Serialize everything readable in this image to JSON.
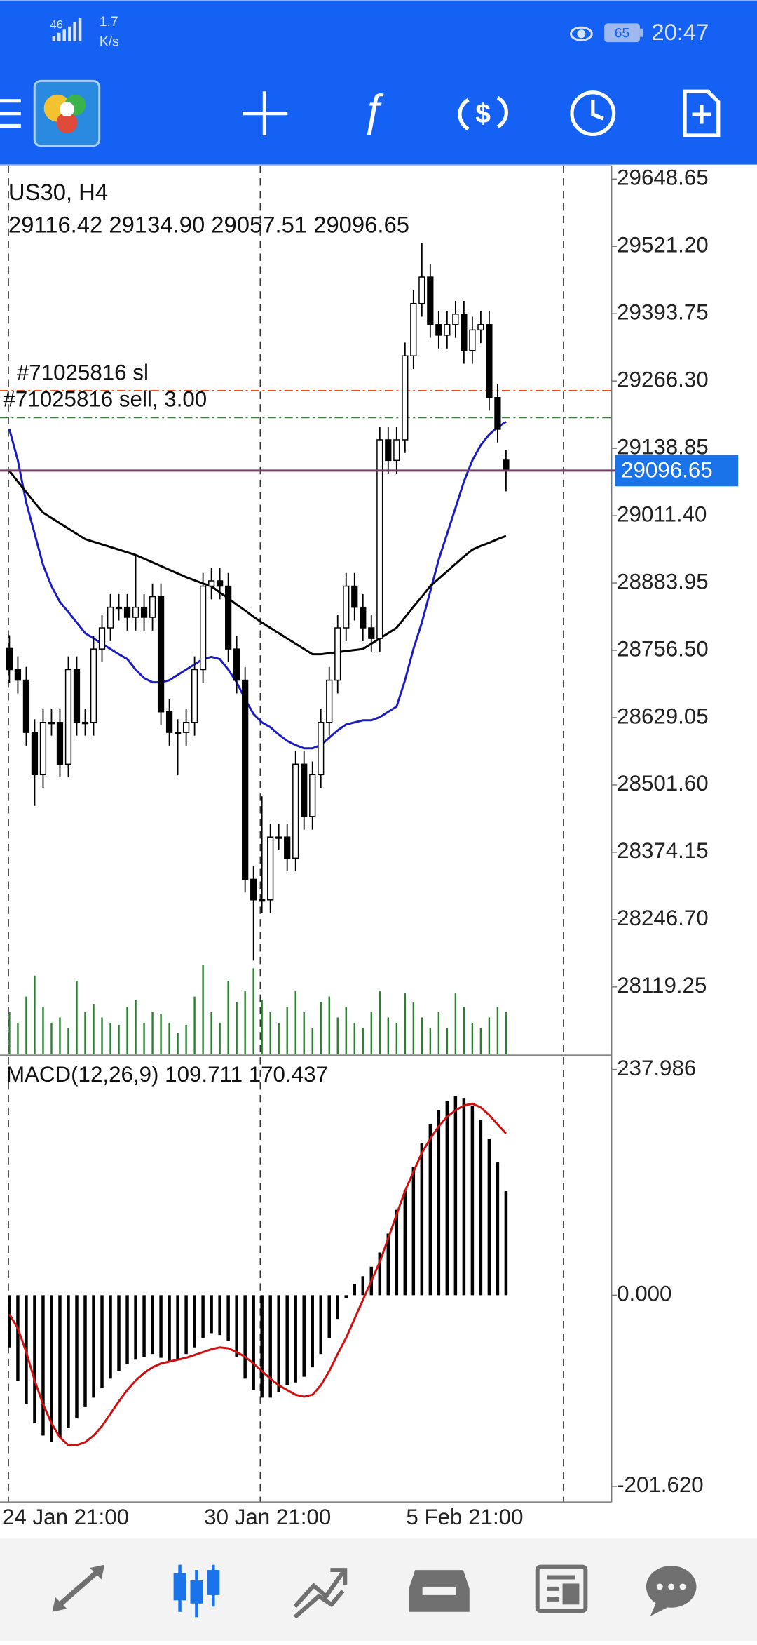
{
  "status_bar": {
    "network": "46",
    "speed": "1.7",
    "speed_unit": "K/s",
    "battery": "65",
    "time": "20:47"
  },
  "chart_data": [
    {
      "type": "candlestick",
      "title": "US30, H4",
      "subtitle": "29116.42 29134.90 29057.51 29096.65",
      "categories": [
        "24 Jan 21:00",
        null,
        null,
        null,
        null,
        null,
        null,
        null,
        null,
        null,
        null,
        null,
        null,
        null,
        null,
        null,
        null,
        null,
        null,
        null,
        null,
        null,
        null,
        null,
        "30 Jan 21:00",
        null,
        null,
        null,
        null,
        null,
        null,
        null,
        null,
        null,
        null,
        null,
        null,
        null,
        null,
        null,
        null,
        null,
        null,
        null,
        null,
        null,
        null,
        null,
        "5 Feb 21:00",
        null,
        null,
        null,
        null,
        null,
        null,
        null,
        null,
        null,
        null,
        null
      ],
      "open": [
        28760,
        28720,
        28700,
        28601,
        28521,
        28620,
        28620,
        28541,
        28720,
        28620,
        28620,
        28759,
        28799,
        28838,
        28838,
        28819,
        28838,
        28819,
        28858,
        28640,
        28601,
        28601,
        28620,
        28720,
        28878,
        28888,
        28878,
        28759,
        28700,
        28323,
        28284,
        28284,
        28403,
        28403,
        28363,
        28541,
        28442,
        28521,
        28620,
        28700,
        28799,
        28878,
        28838,
        28799,
        28779,
        29155,
        29116,
        29155,
        29314,
        29413,
        29463,
        29373,
        29353,
        29373,
        29393,
        29324,
        29363,
        29373,
        29235,
        29116.42
      ],
      "high": [
        28785,
        28745,
        28725,
        28626,
        28645,
        28645,
        28645,
        28745,
        28745,
        28645,
        28784,
        28824,
        28863,
        28863,
        28863,
        28937,
        28863,
        28883,
        28883,
        28665,
        28626,
        28645,
        28745,
        28903,
        28913,
        28913,
        28903,
        28784,
        28725,
        28348,
        28480,
        28428,
        28428,
        28428,
        28566,
        28566,
        28546,
        28645,
        28725,
        28824,
        28903,
        28903,
        28863,
        28824,
        29180,
        29180,
        29180,
        29339,
        29438,
        29528,
        29488,
        29398,
        29398,
        29418,
        29418,
        29388,
        29398,
        29398,
        29260,
        29134.9
      ],
      "low": [
        28695,
        28675,
        28576,
        28462,
        28496,
        28595,
        28516,
        28516,
        28595,
        28595,
        28595,
        28734,
        28774,
        28813,
        28794,
        28794,
        28794,
        28794,
        28615,
        28576,
        28520,
        28576,
        28595,
        28695,
        28853,
        28853,
        28734,
        28675,
        28298,
        28169,
        28259,
        28259,
        28378,
        28338,
        28338,
        28417,
        28417,
        28496,
        28595,
        28675,
        28774,
        28813,
        28774,
        28754,
        28754,
        29091,
        29091,
        29130,
        29289,
        29388,
        29348,
        29328,
        29328,
        29348,
        29299,
        29299,
        29338,
        29210,
        29150,
        29057.51
      ],
      "close": [
        28720,
        28700,
        28601,
        28521,
        28620,
        28620,
        28541,
        28720,
        28620,
        28620,
        28759,
        28799,
        28838,
        28838,
        28819,
        28838,
        28819,
        28858,
        28640,
        28601,
        28601,
        28620,
        28720,
        28878,
        28888,
        28878,
        28759,
        28700,
        28323,
        28284,
        28284,
        28403,
        28403,
        28363,
        28541,
        28442,
        28521,
        28620,
        28700,
        28799,
        28878,
        28838,
        28799,
        28779,
        29155,
        29116,
        29155,
        29314,
        29413,
        29463,
        29373,
        29353,
        29373,
        29393,
        29324,
        29363,
        29373,
        29235,
        29175,
        29096.65
      ],
      "volume": [
        40,
        30,
        55,
        75,
        45,
        30,
        35,
        25,
        70,
        40,
        48,
        35,
        30,
        28,
        45,
        52,
        30,
        40,
        38,
        30,
        20,
        28,
        55,
        85,
        40,
        30,
        70,
        50,
        60,
        82,
        52,
        40,
        30,
        45,
        60,
        40,
        25,
        50,
        55,
        35,
        45,
        30,
        25,
        40,
        60,
        35,
        30,
        58,
        50,
        35,
        25,
        40,
        25,
        58,
        45,
        30,
        25,
        35,
        45,
        40
      ],
      "volume_color": "#2e7d32",
      "ma_lines": [
        {
          "color": "#1c1cc0",
          "values": [
            29175,
            29116,
            29036,
            28977,
            28918,
            28878,
            28848,
            28829,
            28809,
            28789,
            28779,
            28769,
            28759,
            28749,
            28740,
            28720,
            28704,
            28696,
            28696,
            28700,
            28710,
            28720,
            28730,
            28740,
            28744,
            28740,
            28720,
            28696,
            28664,
            28636,
            28620,
            28611,
            28597,
            28585,
            28577,
            28571,
            28571,
            28577,
            28591,
            28605,
            28616,
            28620,
            28624,
            28624,
            28630,
            28640,
            28650,
            28700,
            28759,
            28809,
            28868,
            28928,
            28977,
            29026,
            29076,
            29116,
            29145,
            29165,
            29179,
            29189
          ]
        },
        {
          "color": "#000000",
          "values": [
            29096,
            29076,
            29056,
            29036,
            29017,
            29007,
            28997,
            28987,
            28977,
            28967,
            28962,
            28957,
            28952,
            28947,
            28942,
            28937,
            28930,
            28923,
            28916,
            28909,
            28902,
            28895,
            28889,
            28883,
            28878,
            28866,
            28855,
            28843,
            28832,
            28820,
            28809,
            28799,
            28789,
            28779,
            28769,
            28759,
            28749,
            28749,
            28751,
            28753,
            28755,
            28757,
            28759,
            28769,
            28779,
            28789,
            28799,
            28819,
            28839,
            28858,
            28878,
            28892,
            28906,
            28920,
            28934,
            28947,
            28954,
            28960,
            28967,
            28973
          ]
        }
      ],
      "levels": [
        {
          "label": "#71025816 sl",
          "value": 29248,
          "color": "#e8501a"
        },
        {
          "label": "#71025816 sell, 3.00",
          "value": 29197,
          "color": "#2e8b2e"
        }
      ],
      "bid_color": "#7a3a6e",
      "bid_box_color": "#1a73e8",
      "ylim": [
        27992,
        29674
      ],
      "yticks": [
        29648.65,
        {
          "value": 29521.2,
          "label": "29521.20"
        },
        29393.75,
        {
          "value": 29266.3,
          "label": "29266.30"
        },
        29138.85,
        {
          "value": 29011.4,
          "label": "29011.40"
        },
        28883.95,
        {
          "value": 28756.5,
          "label": "28756.50"
        },
        28629.05,
        {
          "value": 28501.6,
          "label": "28501.60"
        },
        28374.15,
        {
          "value": 28246.7,
          "label": "28246.70"
        },
        28119.25
      ]
    },
    {
      "type": "macd",
      "title": "MACD(12,26,9) 109.711 170.437",
      "histogram": {
        "color": "#000000",
        "values": [
          -55,
          -90,
          -115,
          -135,
          -148,
          -155,
          -150,
          -140,
          -130,
          -118,
          -108,
          -98,
          -88,
          -80,
          -73,
          -68,
          -65,
          -62,
          -66,
          -70,
          -68,
          -62,
          -55,
          -45,
          -40,
          -42,
          -48,
          -65,
          -88,
          -100,
          -108,
          -108,
          -102,
          -95,
          -92,
          -86,
          -76,
          -62,
          -45,
          -25,
          -3,
          12,
          20,
          30,
          45,
          65,
          90,
          110,
          135,
          160,
          180,
          195,
          205,
          210,
          208,
          200,
          185,
          165,
          140,
          109.711
        ]
      },
      "signal": {
        "color": "#d01010",
        "values": [
          -20,
          -35,
          -60,
          -90,
          -115,
          -135,
          -150,
          -158,
          -158,
          -155,
          -148,
          -138,
          -125,
          -112,
          -100,
          -90,
          -82,
          -76,
          -72,
          -70,
          -68,
          -66,
          -63,
          -60,
          -57,
          -55,
          -56,
          -60,
          -65,
          -72,
          -80,
          -88,
          -95,
          -100,
          -105,
          -107,
          -105,
          -95,
          -80,
          -62,
          -45,
          -25,
          -5,
          15,
          35,
          60,
          85,
          110,
          130,
          150,
          165,
          178,
          188,
          195,
          200,
          202,
          198,
          190,
          180,
          170.437
        ]
      },
      "ylim": [
        -218,
        252
      ],
      "yticks": [
        237.986,
        {
          "value": 0,
          "label": "0.000"
        },
        {
          "value": -201.62,
          "label": "-201.620"
        }
      ]
    }
  ]
}
